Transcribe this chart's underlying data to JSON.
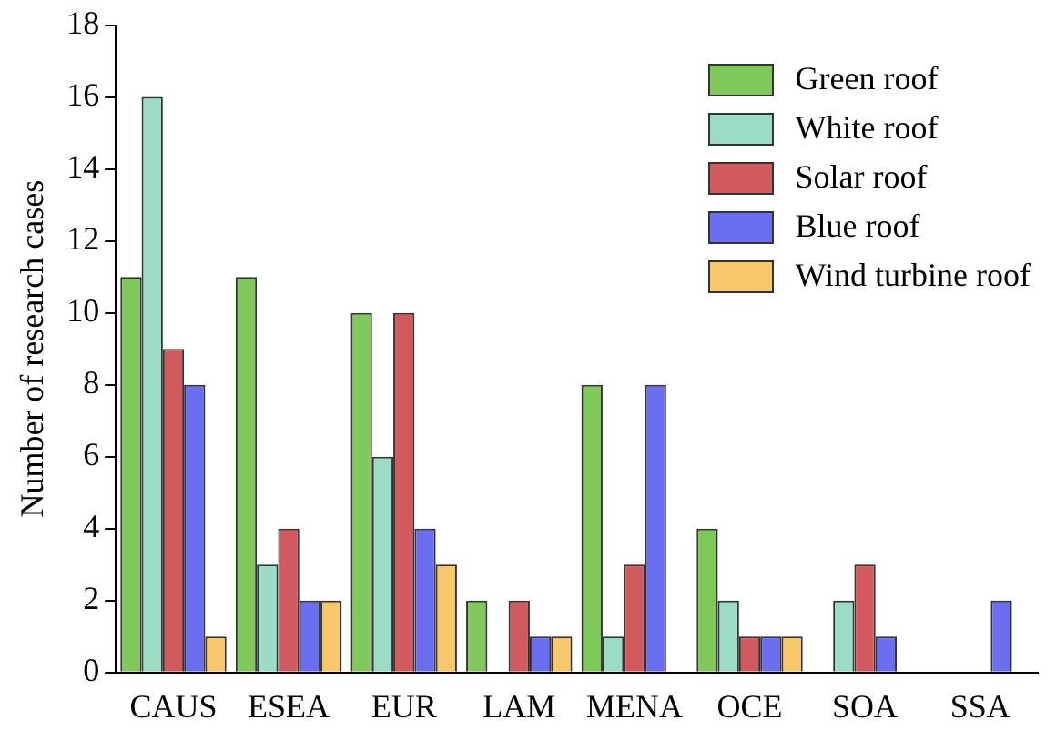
{
  "chart_data": {
    "type": "bar",
    "ylabel": "Number of research cases",
    "categories": [
      "CAUS",
      "ESEA",
      "EUR",
      "LAM",
      "MENA",
      "OCE",
      "SOA",
      "SSA"
    ],
    "series": [
      {
        "name": "Green roof",
        "color": "#7ec95a",
        "values": [
          11,
          11,
          10,
          2,
          8,
          4,
          0,
          0
        ]
      },
      {
        "name": "White roof",
        "color": "#9adcc4",
        "values": [
          16,
          3,
          6,
          0,
          1,
          2,
          2,
          0
        ]
      },
      {
        "name": "Solar roof",
        "color": "#d25a5e",
        "values": [
          9,
          4,
          10,
          2,
          3,
          1,
          3,
          0
        ]
      },
      {
        "name": "Blue roof",
        "color": "#6a6ef0",
        "values": [
          8,
          2,
          4,
          1,
          8,
          1,
          1,
          2
        ]
      },
      {
        "name": "Wind turbine roof",
        "color": "#f8c76a",
        "values": [
          1,
          2,
          3,
          1,
          0,
          1,
          0,
          0
        ]
      }
    ],
    "ylim": [
      0,
      18
    ],
    "yticks": [
      0,
      2,
      4,
      6,
      8,
      10,
      12,
      14,
      16,
      18
    ],
    "grid": false,
    "legend": "top right"
  }
}
